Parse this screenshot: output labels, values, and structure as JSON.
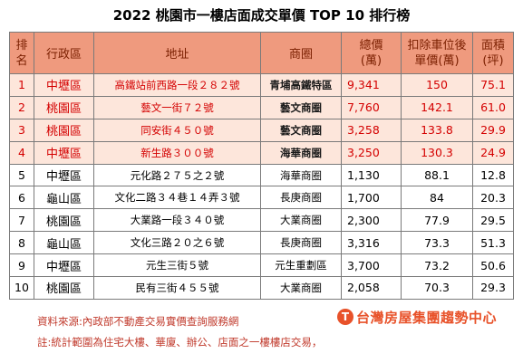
{
  "title": "2022 桃園市一樓店面成交單價 TOP 10 排行榜",
  "header": {
    "rank": "排名",
    "district": "行政區",
    "address": "地址",
    "area": "商圈",
    "total_price": "總價",
    "total_unit": "(萬)",
    "unit_price": "扣除車位後",
    "unit_price_unit": "單價(萬)",
    "size": "面積",
    "size_unit": "(坪)"
  },
  "colors": {
    "header_bg": "#ef9a7e",
    "highlight_bg": "#fde6db",
    "highlight_text": "#d40000",
    "brand": "#e8522a"
  },
  "rows": [
    {
      "rank": "1",
      "district": "中壢區",
      "address": "高鐵站前西路一段２８２號",
      "area": "青埔高鐵特區",
      "total": "9,341",
      "unit": "150",
      "size": "75.1",
      "highlight": true
    },
    {
      "rank": "2",
      "district": "桃園區",
      "address": "藝文一街７２號",
      "area": "藝文商圈",
      "total": "7,760",
      "unit": "142.1",
      "size": "61.0",
      "highlight": true
    },
    {
      "rank": "3",
      "district": "桃園區",
      "address": "同安街４５０號",
      "area": "藝文商圈",
      "total": "3,258",
      "unit": "133.8",
      "size": "29.9",
      "highlight": true
    },
    {
      "rank": "4",
      "district": "中壢區",
      "address": "新生路３００號",
      "area": "海華商圈",
      "total": "3,250",
      "unit": "130.3",
      "size": "24.9",
      "highlight": true
    },
    {
      "rank": "5",
      "district": "中壢區",
      "address": "元化路２７５之２號",
      "area": "海華商圈",
      "total": "1,130",
      "unit": "88.1",
      "size": "12.8",
      "highlight": false
    },
    {
      "rank": "6",
      "district": "龜山區",
      "address": "文化二路３４巷１４弄３號",
      "area": "長庚商圈",
      "total": "1,700",
      "unit": "84",
      "size": "20.3",
      "highlight": false
    },
    {
      "rank": "7",
      "district": "桃園區",
      "address": "大業路一段３４０號",
      "area": "大業商圈",
      "total": "2,300",
      "unit": "77.9",
      "size": "29.5",
      "highlight": false
    },
    {
      "rank": "8",
      "district": "龜山區",
      "address": "文化三路２０之６號",
      "area": "長庚商圈",
      "total": "3,316",
      "unit": "73.3",
      "size": "51.3",
      "highlight": false
    },
    {
      "rank": "9",
      "district": "中壢區",
      "address": "元生三街５號",
      "area": "元生重劃區",
      "total": "3,700",
      "unit": "73.2",
      "size": "50.6",
      "highlight": false
    },
    {
      "rank": "10",
      "district": "桃園區",
      "address": "民有三街４５５號",
      "area": "大業商圈",
      "total": "2,058",
      "unit": "70.3",
      "size": "29.3",
      "highlight": false
    }
  ],
  "source": "資料來源:內政部不動產交易實價查詢服務網",
  "note": "註:統計範圍為住宅大樓、華廈、辦公、店面之一樓樓店交易，",
  "brand": {
    "logo_glyph": "T",
    "name": "台灣房屋集團趨勢中心"
  }
}
